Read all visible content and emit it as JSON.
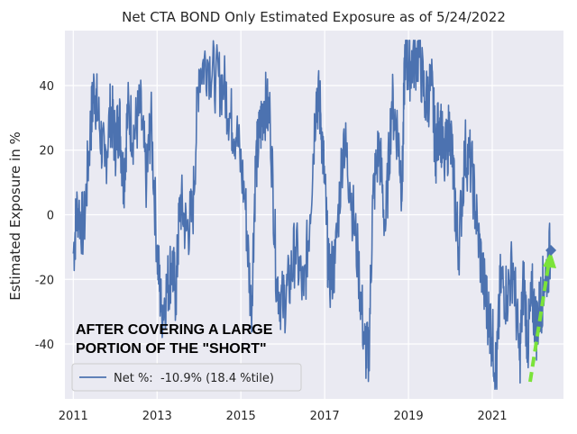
{
  "chart_data": {
    "type": "line",
    "title": "Net CTA BOND Only Estimated Exposure as of 5/24/2022",
    "xlabel": "",
    "ylabel": "Estimated Exposure in %",
    "xlim": [
      2010.8,
      2022.7
    ],
    "ylim": [
      -57,
      57
    ],
    "x_ticks": [
      2011,
      2013,
      2015,
      2017,
      2019,
      2021
    ],
    "x_tick_labels": [
      "2011",
      "2013",
      "2015",
      "2017",
      "2019",
      "2021"
    ],
    "y_ticks": [
      -40,
      -20,
      0,
      20,
      40
    ],
    "y_tick_labels": [
      "-40",
      "-20",
      "0",
      "20",
      "40"
    ],
    "grid": true,
    "background_color": "#eaeaf2",
    "legend_position": "lower-left",
    "annotation": [
      "AFTER COVERING A LARGE",
      "PORTION OF THE \"SHORT\""
    ],
    "series": [
      {
        "name": "Net %:  -10.9% (18.4 %tile)",
        "color": "#4c72b0",
        "x": [
          2011.0,
          2011.1,
          2011.25,
          2011.4,
          2011.5,
          2011.6,
          2011.75,
          2011.9,
          2012.0,
          2012.1,
          2012.2,
          2012.3,
          2012.45,
          2012.6,
          2012.75,
          2012.85,
          2013.0,
          2013.1,
          2013.25,
          2013.35,
          2013.45,
          2013.55,
          2013.7,
          2013.85,
          2014.0,
          2014.2,
          2014.4,
          2014.6,
          2014.75,
          2014.9,
          2015.1,
          2015.25,
          2015.35,
          2015.45,
          2015.55,
          2015.7,
          2015.85,
          2016.0,
          2016.15,
          2016.3,
          2016.5,
          2016.65,
          2016.8,
          2016.9,
          2017.0,
          2017.1,
          2017.25,
          2017.45,
          2017.6,
          2017.8,
          2017.95,
          2018.05,
          2018.15,
          2018.3,
          2018.45,
          2018.6,
          2018.75,
          2018.85,
          2018.92,
          2019.0,
          2019.1,
          2019.25,
          2019.4,
          2019.55,
          2019.65,
          2019.75,
          2019.85,
          2020.0,
          2020.1,
          2020.2,
          2020.35,
          2020.5,
          2020.65,
          2020.8,
          2020.9,
          2021.0,
          2021.1,
          2021.2,
          2021.35,
          2021.5,
          2021.65,
          2021.75,
          2021.85,
          2021.95,
          2022.05,
          2022.15,
          2022.25,
          2022.4
        ],
        "y": [
          -12,
          3,
          -5,
          25,
          40,
          30,
          15,
          33,
          22,
          30,
          10,
          32,
          25,
          33,
          10,
          30,
          -10,
          -30,
          -22,
          -15,
          -25,
          5,
          -5,
          0,
          45,
          48,
          42,
          40,
          30,
          25,
          5,
          -30,
          15,
          25,
          35,
          30,
          -20,
          -28,
          -22,
          -10,
          -25,
          0,
          38,
          32,
          10,
          -20,
          -15,
          25,
          10,
          -15,
          -40,
          -45,
          5,
          22,
          -5,
          35,
          25,
          8,
          52,
          45,
          48,
          50,
          35,
          40,
          20,
          30,
          15,
          28,
          5,
          -10,
          20,
          15,
          -5,
          -22,
          -30,
          -38,
          -50,
          -20,
          -25,
          -15,
          -45,
          -20,
          -40,
          -25,
          -35,
          -28,
          -20,
          -11
        ]
      }
    ]
  }
}
